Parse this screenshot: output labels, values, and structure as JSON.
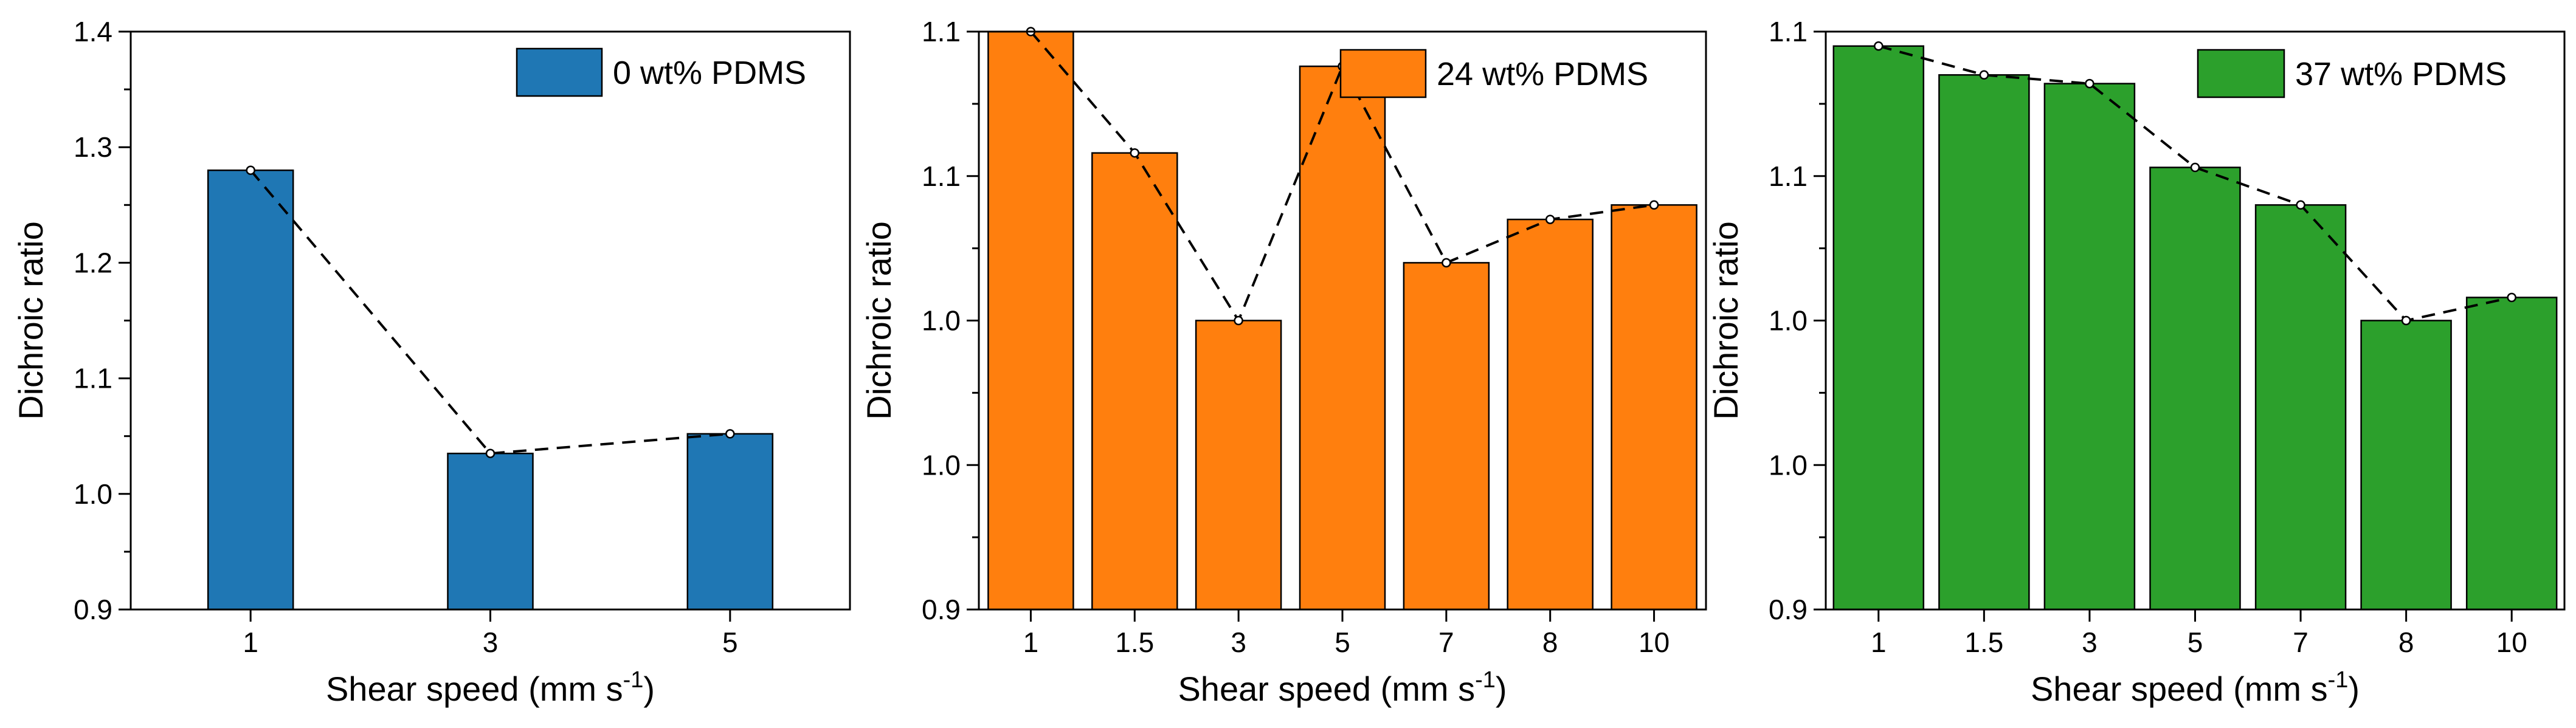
{
  "chart_data": [
    {
      "type": "bar",
      "title": "",
      "xlabel": "Shear speed (mm s",
      "xlabel_superscript": "-1",
      "xlabel_close": ")",
      "ylabel": "Dichroic ratio",
      "categories": [
        "1",
        "3",
        "5"
      ],
      "values": [
        1.28,
        1.035,
        1.052
      ],
      "ylim": [
        0.9,
        1.4
      ],
      "yticks": [
        0.9,
        1.0,
        1.1,
        1.2,
        1.3,
        1.4
      ],
      "ytick_labels": [
        "0.9",
        "1.0",
        "1.1",
        "1.2",
        "1.3",
        "1.4"
      ],
      "legend": "0 wt% PDMS",
      "legend_position": "top-right",
      "color": "#1f77b4",
      "dashed_trend_line": true,
      "grid": false
    },
    {
      "type": "bar",
      "title": "",
      "xlabel": "Shear speed (mm s",
      "xlabel_superscript": "-1",
      "xlabel_close": ")",
      "ylabel": "Dichroic ratio",
      "categories": [
        "1",
        "1.5",
        "3",
        "5",
        "7",
        "8",
        "10"
      ],
      "values": [
        1.1,
        1.058,
        1.0,
        1.088,
        1.02,
        1.035,
        1.04
      ],
      "ylim": [
        0.9,
        1.1
      ],
      "yticks": [
        0.9,
        0.95,
        1.0,
        1.05,
        1.1
      ],
      "ytick_labels": [
        "0.9",
        "1.0",
        "1.0",
        "1.1",
        "1.1"
      ],
      "legend": "24 wt% PDMS",
      "legend_position": "top-right",
      "color": "#ff7f0e",
      "dashed_trend_line": true,
      "grid": false
    },
    {
      "type": "bar",
      "title": "",
      "xlabel": "Shear speed (mm s",
      "xlabel_superscript": "-1",
      "xlabel_close": ")",
      "ylabel": "Dichroic ratio",
      "categories": [
        "1",
        "1.5",
        "3",
        "5",
        "7",
        "8",
        "10"
      ],
      "values": [
        1.095,
        1.085,
        1.082,
        1.053,
        1.04,
        1.0,
        1.008
      ],
      "ylim": [
        0.9,
        1.1
      ],
      "yticks": [
        0.9,
        0.95,
        1.0,
        1.05,
        1.1
      ],
      "ytick_labels": [
        "0.9",
        "1.0",
        "1.0",
        "1.1",
        "1.1"
      ],
      "legend": "37 wt% PDMS",
      "legend_position": "top-right",
      "color": "#2ca02c",
      "dashed_trend_line": true,
      "grid": false
    }
  ]
}
